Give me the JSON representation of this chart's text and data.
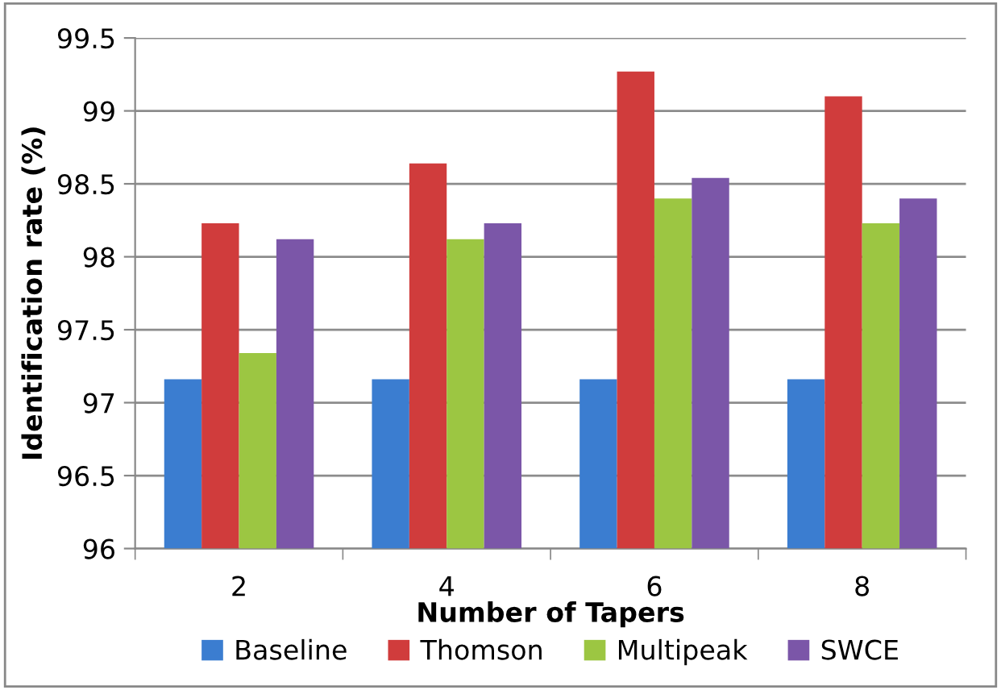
{
  "chart_data": {
    "type": "bar",
    "xlabel": "Number of Tapers",
    "ylabel": "Identification rate (%)",
    "categories": [
      "2",
      "4",
      "6",
      "8"
    ],
    "series": [
      {
        "name": "Baseline",
        "color": "#3b7dd0",
        "values": [
          97.16,
          97.16,
          97.16,
          97.16
        ]
      },
      {
        "name": "Thomson",
        "color": "#d03c3c",
        "values": [
          98.23,
          98.64,
          99.27,
          99.1
        ]
      },
      {
        "name": "Multipeak",
        "color": "#9cc642",
        "values": [
          97.34,
          98.12,
          98.4,
          98.23
        ]
      },
      {
        "name": "SWCE",
        "color": "#7b56a8",
        "values": [
          98.12,
          98.23,
          98.54,
          98.4
        ]
      }
    ],
    "ylim": [
      96,
      99.5
    ],
    "yticks": [
      96,
      96.5,
      97,
      97.5,
      98,
      98.5,
      99,
      99.5
    ],
    "grid": "y",
    "legend": "bottom"
  }
}
